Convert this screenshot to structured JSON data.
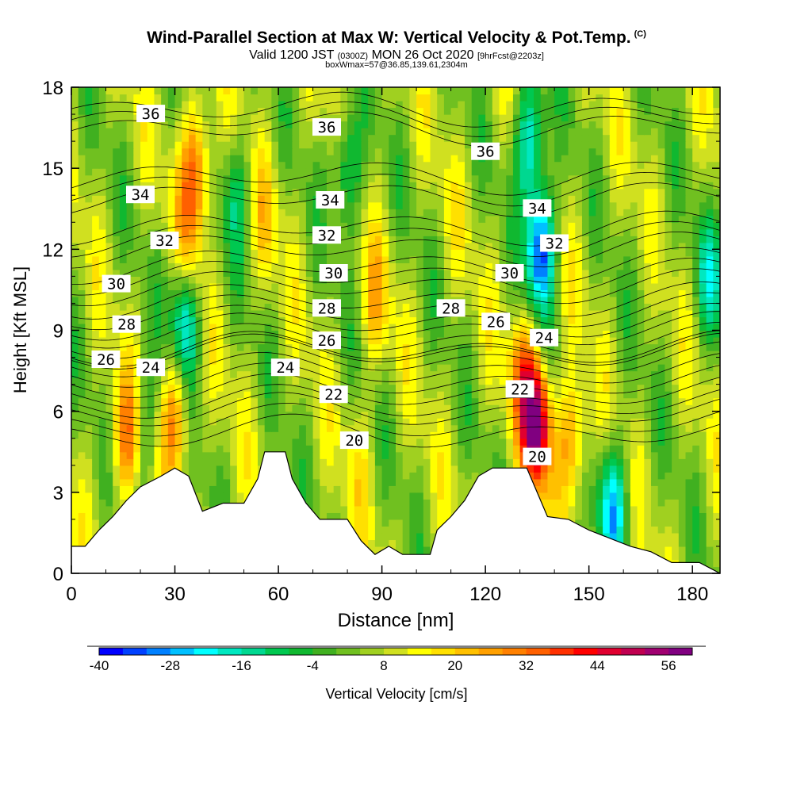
{
  "header": {
    "title": "Wind-Parallel Section at Max W: Vertical Velocity & Pot.Temp.",
    "copyright": "(C)",
    "valid_prefix": "Valid 1200 JST",
    "valid_utc": "(0300Z)",
    "valid_date": "MON 26 Oct 2020",
    "forecast": "[9hrFcst@2203z]",
    "box_info": "boxWmax=57@36.85,139.61,2304m"
  },
  "chart_data": {
    "type": "heatmap",
    "xlabel": "Distance [nm]",
    "ylabel": "Height [Kft MSL]",
    "xlim": [
      0,
      188
    ],
    "ylim": [
      0,
      18
    ],
    "x_ticks": [
      "0",
      "30",
      "60",
      "90",
      "120",
      "150",
      "180"
    ],
    "y_ticks": [
      "0",
      "3",
      "6",
      "9",
      "12",
      "15",
      "18"
    ],
    "colorbar": {
      "label": "Vertical Velocity [cm/s]",
      "range": [
        -40,
        60
      ],
      "step": 4,
      "tick_labels": [
        "-40",
        "-28",
        "-16",
        "-4",
        "8",
        "20",
        "32",
        "44",
        "56"
      ],
      "colors": [
        "#0000ff",
        "#0040ff",
        "#0080ff",
        "#00c0ff",
        "#00ffff",
        "#00e8c0",
        "#00d890",
        "#00c850",
        "#10b830",
        "#40b020",
        "#70c020",
        "#a0d020",
        "#d0e020",
        "#ffff00",
        "#ffe000",
        "#ffc000",
        "#ffa000",
        "#ff8000",
        "#ff6000",
        "#ff3000",
        "#ff0000",
        "#e00030",
        "#c00050",
        "#a00070",
        "#800080"
      ]
    },
    "w_features": [
      {
        "x": 16,
        "y": 5.0,
        "w": 32
      },
      {
        "x": 21,
        "y": 5.5,
        "w": -8
      },
      {
        "x": 30,
        "y": 5.8,
        "w": 30
      },
      {
        "x": 34,
        "y": 12.0,
        "w": 20
      },
      {
        "x": 36,
        "y": 15.0,
        "w": 36
      },
      {
        "x": 33,
        "y": 9.5,
        "w": -24
      },
      {
        "x": 48,
        "y": 14.0,
        "w": -8
      },
      {
        "x": 56,
        "y": 13.0,
        "w": 16
      },
      {
        "x": 80,
        "y": 15.0,
        "w": -16
      },
      {
        "x": 88,
        "y": 10.0,
        "w": 20
      },
      {
        "x": 84,
        "y": 4.0,
        "w": 12
      },
      {
        "x": 112,
        "y": 13.0,
        "w": 8
      },
      {
        "x": 135,
        "y": 5.5,
        "w": 57
      },
      {
        "x": 131,
        "y": 7.5,
        "w": 28
      },
      {
        "x": 136,
        "y": 12.0,
        "w": -36
      },
      {
        "x": 133,
        "y": 16.0,
        "w": -24
      },
      {
        "x": 145,
        "y": 4.8,
        "w": 30
      },
      {
        "x": 147,
        "y": 11.0,
        "w": 8
      },
      {
        "x": 157,
        "y": 2.5,
        "w": -24
      },
      {
        "x": 168,
        "y": 11.5,
        "w": 4
      },
      {
        "x": 185,
        "y": 11.0,
        "w": -12
      }
    ],
    "terrain": [
      {
        "x": 0,
        "h": 1.0
      },
      {
        "x": 4,
        "h": 1.0
      },
      {
        "x": 8,
        "h": 1.6
      },
      {
        "x": 12,
        "h": 2.1
      },
      {
        "x": 16,
        "h": 2.7
      },
      {
        "x": 20,
        "h": 3.2
      },
      {
        "x": 26,
        "h": 3.6
      },
      {
        "x": 30,
        "h": 3.9
      },
      {
        "x": 34,
        "h": 3.6
      },
      {
        "x": 38,
        "h": 2.3
      },
      {
        "x": 44,
        "h": 2.6
      },
      {
        "x": 50,
        "h": 2.6
      },
      {
        "x": 54,
        "h": 3.5
      },
      {
        "x": 56,
        "h": 4.5
      },
      {
        "x": 62,
        "h": 4.5
      },
      {
        "x": 64,
        "h": 3.5
      },
      {
        "x": 68,
        "h": 2.6
      },
      {
        "x": 72,
        "h": 2.0
      },
      {
        "x": 80,
        "h": 2.0
      },
      {
        "x": 84,
        "h": 1.2
      },
      {
        "x": 88,
        "h": 0.7
      },
      {
        "x": 92,
        "h": 1.0
      },
      {
        "x": 96,
        "h": 0.7
      },
      {
        "x": 104,
        "h": 0.7
      },
      {
        "x": 106,
        "h": 1.6
      },
      {
        "x": 110,
        "h": 2.1
      },
      {
        "x": 114,
        "h": 2.7
      },
      {
        "x": 118,
        "h": 3.6
      },
      {
        "x": 122,
        "h": 3.9
      },
      {
        "x": 132,
        "h": 3.9
      },
      {
        "x": 134,
        "h": 3.3
      },
      {
        "x": 138,
        "h": 2.1
      },
      {
        "x": 144,
        "h": 2.0
      },
      {
        "x": 150,
        "h": 1.6
      },
      {
        "x": 156,
        "h": 1.3
      },
      {
        "x": 162,
        "h": 1.0
      },
      {
        "x": 168,
        "h": 0.8
      },
      {
        "x": 174,
        "h": 0.4
      },
      {
        "x": 182,
        "h": 0.4
      },
      {
        "x": 188,
        "h": 0.0
      }
    ],
    "isentropes": [
      {
        "theta": 20,
        "base": 5.2,
        "label_at": [
          [
            82,
            4.9
          ],
          [
            135,
            4.3
          ]
        ]
      },
      {
        "theta": 22,
        "base": 6.3,
        "label_at": [
          [
            76,
            6.6
          ],
          [
            130,
            6.8
          ]
        ]
      },
      {
        "theta": 24,
        "base": 7.5,
        "label_at": [
          [
            23,
            7.6
          ],
          [
            62,
            7.6
          ],
          [
            137,
            8.7
          ]
        ]
      },
      {
        "theta": 26,
        "base": 8.2,
        "label_at": [
          [
            10,
            7.9
          ],
          [
            74,
            8.6
          ],
          [
            123,
            9.3
          ]
        ]
      },
      {
        "theta": 28,
        "base": 9.3,
        "label_at": [
          [
            16,
            9.2
          ],
          [
            74,
            9.8
          ],
          [
            110,
            9.8
          ]
        ]
      },
      {
        "theta": 30,
        "base": 10.6,
        "label_at": [
          [
            13,
            10.7
          ],
          [
            76,
            11.1
          ],
          [
            127,
            11.1
          ]
        ]
      },
      {
        "theta": 32,
        "base": 12.0,
        "label_at": [
          [
            27,
            12.3
          ],
          [
            74,
            12.5
          ],
          [
            140,
            12.2
          ]
        ]
      },
      {
        "theta": 34,
        "base": 13.9,
        "label_at": [
          [
            20,
            14.0
          ],
          [
            75,
            13.8
          ],
          [
            135,
            13.5
          ]
        ]
      },
      {
        "theta": 36,
        "base": 16.5,
        "label_at": [
          [
            23,
            17.0
          ],
          [
            74,
            16.5
          ],
          [
            120,
            15.6
          ]
        ]
      }
    ]
  }
}
